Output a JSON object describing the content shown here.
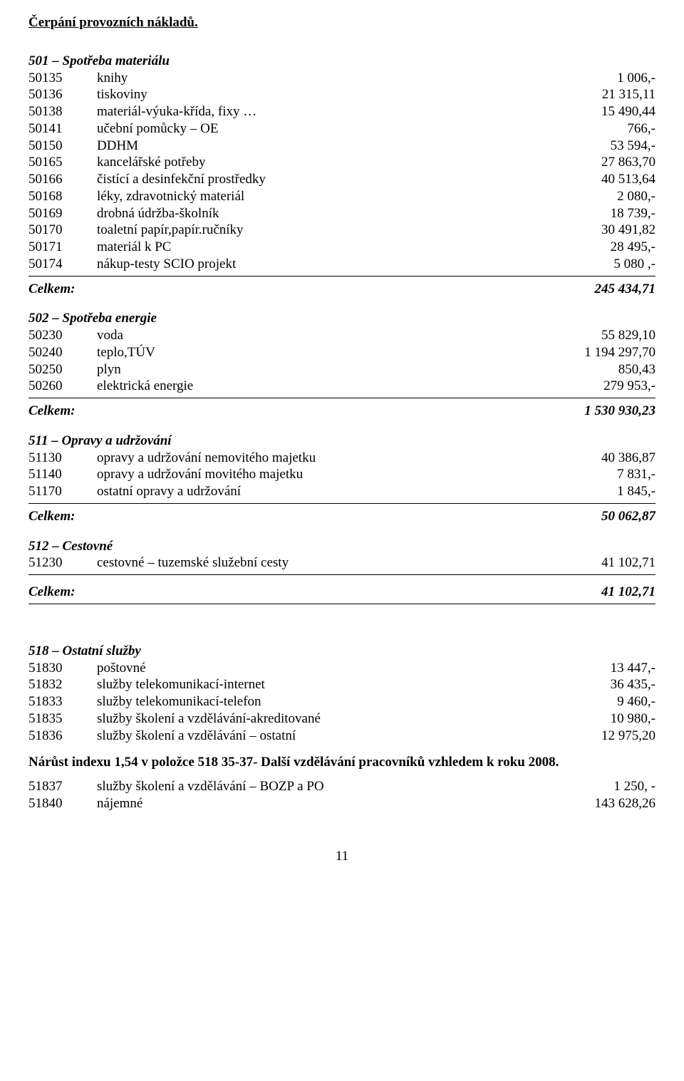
{
  "title": "Čerpání provozních nákladů.",
  "s501": {
    "heading": "501 – Spotřeba materiálu",
    "rows": [
      {
        "code": "50135",
        "desc": "knihy",
        "val": "1 006,-"
      },
      {
        "code": "50136",
        "desc": "tiskoviny",
        "val": "21 315,11"
      },
      {
        "code": "50138",
        "desc": "materiál-výuka-křída, fixy …",
        "val": "15 490,44"
      },
      {
        "code": "50141",
        "desc": "učební pomůcky – OE",
        "val": "766,-"
      },
      {
        "code": "50150",
        "desc": "DDHM",
        "val": "53 594,-"
      },
      {
        "code": "50165",
        "desc": "kancelářské potřeby",
        "val": "27 863,70"
      },
      {
        "code": "50166",
        "desc": "čistící a desinfekční prostředky",
        "val": "40 513,64"
      },
      {
        "code": "50168",
        "desc": "léky, zdravotnický materiál",
        "val": "2 080,-"
      },
      {
        "code": "50169",
        "desc": "drobná údržba-školník",
        "val": "18 739,-"
      },
      {
        "code": "50170",
        "desc": "toaletní papír,papír.ručníky",
        "val": "30 491,82"
      },
      {
        "code": "50171",
        "desc": "materiál k PC",
        "val": "28 495,-"
      },
      {
        "code": "50174",
        "desc": "nákup-testy SCIO projekt",
        "val": "5 080 ,-"
      }
    ],
    "total_label": "Celkem:",
    "total_val": "245 434,71"
  },
  "s502": {
    "heading": "502 – Spotřeba energie",
    "rows": [
      {
        "code": "50230",
        "desc": "voda",
        "val": "55 829,10"
      },
      {
        "code": "50240",
        "desc": "teplo,TÚV",
        "val": "1 194 297,70"
      },
      {
        "code": "50250",
        "desc": "plyn",
        "val": "850,43"
      },
      {
        "code": "50260",
        "desc": "elektrická energie",
        "val": "279 953,-"
      }
    ],
    "total_label": "Celkem:",
    "total_val": "1 530 930,23"
  },
  "s511": {
    "heading": "511 – Opravy a udržování",
    "rows": [
      {
        "code": "51130",
        "desc": "opravy a udržování nemovitého majetku",
        "val": "40 386,87"
      },
      {
        "code": "51140",
        "desc": "opravy a udržování movitého majetku",
        "val": "7 831,-"
      },
      {
        "code": "51170",
        "desc": "ostatní opravy a udržování",
        "val": "1 845,-"
      }
    ],
    "total_label": "Celkem:",
    "total_val": "50 062,87"
  },
  "s512": {
    "heading": "512 – Cestovné",
    "rows": [
      {
        "code": "51230",
        "desc": "cestovné – tuzemské služební cesty",
        "val": "41 102,71"
      }
    ],
    "total_label": "Celkem:",
    "total_val": "41 102,71"
  },
  "s518": {
    "heading": "518 – Ostatní služby",
    "rows": [
      {
        "code": "51830",
        "desc": "poštovné",
        "val": "13 447,-"
      },
      {
        "code": "51832",
        "desc": "služby telekomunikací-internet",
        "val": "36 435,-"
      },
      {
        "code": "51833",
        "desc": "služby telekomunikací-telefon",
        "val": "9 460,-"
      },
      {
        "code": "51835",
        "desc": "služby školení a vzdělávání-akreditované",
        "val": "10 980,-"
      },
      {
        "code": "51836",
        "desc": "služby školení a vzdělávání – ostatní",
        "val": "12 975,20"
      }
    ]
  },
  "paragraph": "Nárůst indexu 1,54 v položce 518 35-37- Další vzdělávání pracovníků vzhledem k roku 2008.",
  "s518b": {
    "rows": [
      {
        "code": "51837",
        "desc": "služby školení a vzdělávání – BOZP a PO",
        "val": "1 250, -"
      },
      {
        "code": "51840",
        "desc": "nájemné",
        "val": "143 628,26"
      }
    ]
  },
  "page_number": "11"
}
